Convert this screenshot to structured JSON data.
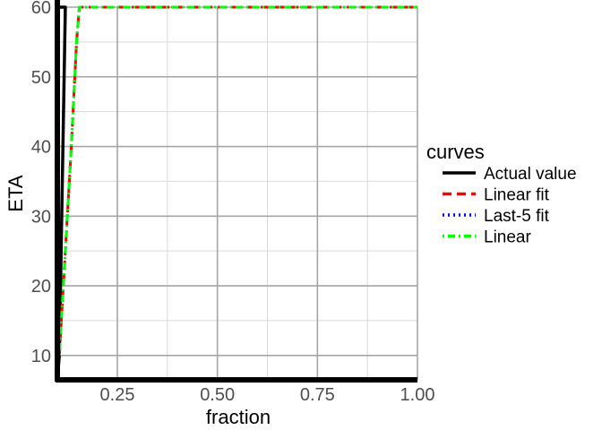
{
  "chart_data": {
    "type": "line",
    "xlabel": "fraction",
    "ylabel": "ETA",
    "xlim": [
      0.1,
      1.0
    ],
    "ylim": [
      6.5,
      60
    ],
    "x_ticks": [
      0.25,
      0.5,
      0.75,
      1.0
    ],
    "x_tick_labels": [
      "0.25",
      "0.50",
      "0.75",
      "1.00"
    ],
    "y_ticks": [
      10,
      20,
      30,
      40,
      50,
      60
    ],
    "y_tick_labels": [
      "10",
      "20",
      "30",
      "40",
      "50",
      "60"
    ],
    "grid": true,
    "legend": {
      "title": "curves",
      "position": "right"
    },
    "series": [
      {
        "name": "Actual value",
        "color": "#000000",
        "dash": "solid",
        "x": [
          0.1,
          0.105,
          0.12,
          0.1,
          0.1,
          1.0
        ],
        "y": [
          6.5,
          10,
          60,
          60,
          6.5,
          6.5
        ]
      },
      {
        "name": "Linear fit",
        "color": "#ff0000",
        "dash": "dashed",
        "x": [
          0.105,
          0.115,
          0.125,
          0.135,
          0.148,
          0.155,
          1.0
        ],
        "y": [
          10,
          20,
          30,
          40,
          55,
          60,
          60
        ]
      },
      {
        "name": "Last-5 fit",
        "color": "#0000ff",
        "dash": "dotted",
        "x": [
          0.105,
          0.115,
          0.125,
          0.135,
          0.148,
          0.155,
          1.0
        ],
        "y": [
          10,
          20,
          30,
          40,
          55,
          60,
          60
        ]
      },
      {
        "name": "Linear",
        "color": "#00ff00",
        "dash": "dotdash",
        "x": [
          0.105,
          0.115,
          0.125,
          0.135,
          0.148,
          0.155,
          1.0
        ],
        "y": [
          10,
          20,
          30,
          40,
          55,
          60,
          60
        ]
      }
    ]
  }
}
